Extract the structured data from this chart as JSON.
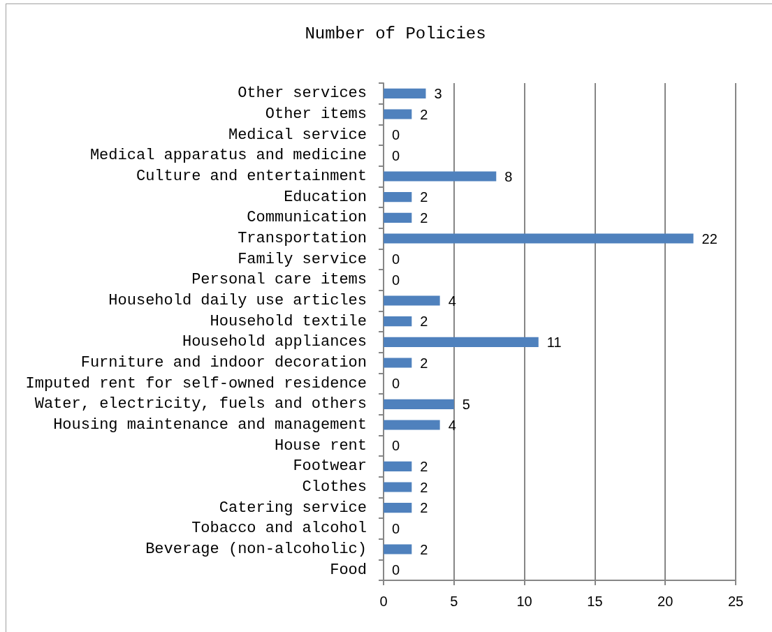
{
  "chart_data": {
    "type": "bar",
    "orientation": "horizontal",
    "title": "Number of Policies",
    "categories": [
      "Other services",
      "Other items",
      "Medical service",
      "Medical apparatus and medicine",
      "Culture and entertainment",
      "Education",
      "Communication",
      "Transportation",
      "Family service",
      "Personal care items",
      "Household daily use articles",
      "Household textile",
      "Household appliances",
      "Furniture and indoor decoration",
      "Imputed rent for self-owned residence",
      "Water, electricity, fuels and others",
      "Housing maintenance and management",
      "House rent",
      "Footwear",
      "Clothes",
      "Catering service",
      "Tobacco and alcohol",
      "Beverage (non-alcoholic)",
      "Food"
    ],
    "values": [
      3,
      2,
      0,
      0,
      8,
      2,
      2,
      22,
      0,
      0,
      4,
      2,
      11,
      2,
      0,
      5,
      4,
      0,
      2,
      2,
      2,
      0,
      2,
      0
    ],
    "color": "#4f81bd",
    "xlim": [
      0,
      25
    ],
    "xticks": [
      0,
      5,
      10,
      15,
      20,
      25
    ],
    "grid": "x",
    "data_labels": true
  }
}
